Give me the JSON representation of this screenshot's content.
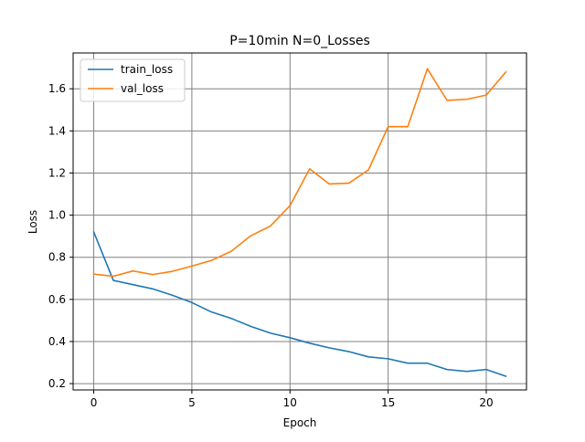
{
  "chart_data": {
    "type": "line",
    "title": "P=10min N=0_Losses",
    "xlabel": "Epoch",
    "ylabel": "Loss",
    "xlim": [
      -1.05,
      22.05
    ],
    "ylim": [
      0.17,
      1.77
    ],
    "xticks": [
      0,
      5,
      10,
      15,
      20
    ],
    "yticks": [
      0.2,
      0.4,
      0.6,
      0.8,
      1.0,
      1.2,
      1.4,
      1.6
    ],
    "ytick_labels": [
      "0.2",
      "0.4",
      "0.6",
      "0.8",
      "1.0",
      "1.2",
      "1.4",
      "1.6"
    ],
    "grid": true,
    "legend_position": "upper left",
    "x": [
      0,
      1,
      2,
      3,
      4,
      5,
      6,
      7,
      8,
      9,
      10,
      11,
      12,
      13,
      14,
      15,
      16,
      17,
      18,
      19,
      20,
      21
    ],
    "series": [
      {
        "name": "train_loss",
        "color": "#1f77b4",
        "values": [
          0.92,
          0.69,
          0.67,
          0.65,
          0.62,
          0.585,
          0.54,
          0.51,
          0.472,
          0.44,
          0.418,
          0.392,
          0.37,
          0.352,
          0.327,
          0.318,
          0.297,
          0.297,
          0.267,
          0.258,
          0.267,
          0.235
        ]
      },
      {
        "name": "val_loss",
        "color": "#ff7f0e",
        "values": [
          0.72,
          0.71,
          0.735,
          0.718,
          0.733,
          0.758,
          0.785,
          0.828,
          0.902,
          0.948,
          1.045,
          1.22,
          1.148,
          1.152,
          1.215,
          1.42,
          1.42,
          1.695,
          1.545,
          1.55,
          1.57,
          1.68
        ]
      }
    ]
  }
}
